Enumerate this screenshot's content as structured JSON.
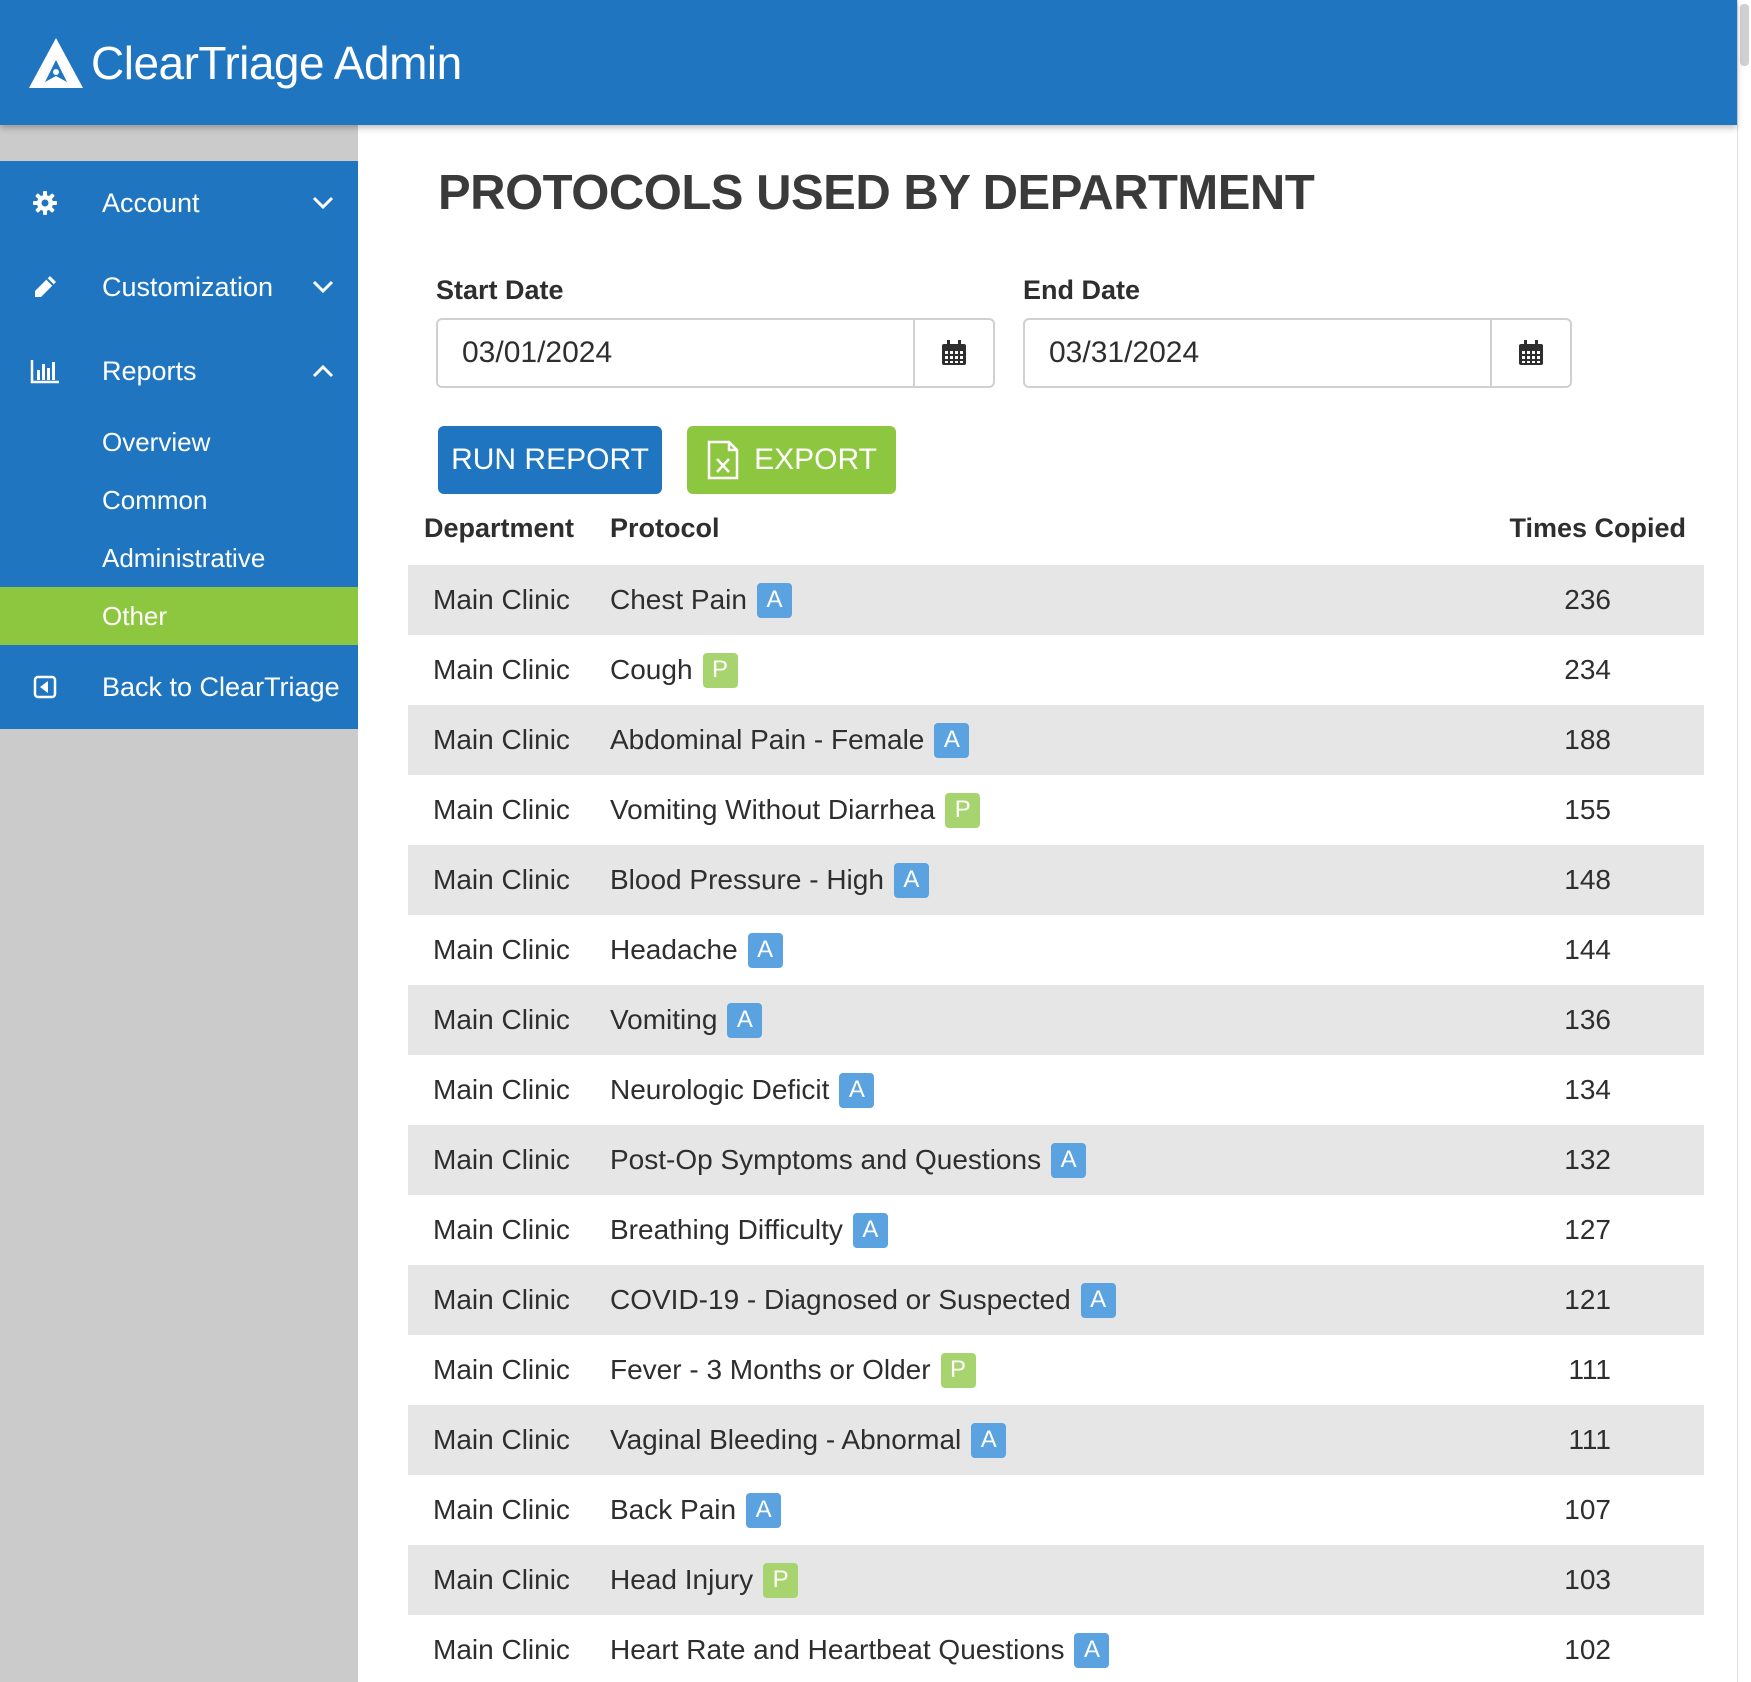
{
  "app": {
    "title": "ClearTriage Admin"
  },
  "colors": {
    "primary": "#1f75c0",
    "accent": "#8dc63f",
    "badge_a": "#5ba3e0",
    "badge_p": "#a8d46f"
  },
  "sidebar": {
    "items": [
      {
        "label": "Account",
        "icon": "gear-icon",
        "chevron": "down"
      },
      {
        "label": "Customization",
        "icon": "pencil-icon",
        "chevron": "down"
      },
      {
        "label": "Reports",
        "icon": "bar-chart-icon",
        "chevron": "up"
      }
    ],
    "sub_items": [
      {
        "label": "Overview",
        "active": false
      },
      {
        "label": "Common",
        "active": false
      },
      {
        "label": "Administrative",
        "active": false
      },
      {
        "label": "Other",
        "active": true
      }
    ],
    "back": {
      "label": "Back to ClearTriage",
      "icon": "back-arrow-icon"
    }
  },
  "main": {
    "title": "PROTOCOLS USED BY DEPARTMENT",
    "start_date": {
      "label": "Start Date",
      "value": "03/01/2024"
    },
    "end_date": {
      "label": "End Date",
      "value": "03/31/2024"
    },
    "run_report_label": "RUN REPORT",
    "export_label": "EXPORT",
    "table": {
      "headers": {
        "department": "Department",
        "protocol": "Protocol",
        "times_copied": "Times Copied"
      },
      "rows": [
        {
          "department": "Main Clinic",
          "protocol": "Chest Pain",
          "badge": "A",
          "count": "236"
        },
        {
          "department": "Main Clinic",
          "protocol": "Cough",
          "badge": "P",
          "count": "234"
        },
        {
          "department": "Main Clinic",
          "protocol": "Abdominal Pain - Female",
          "badge": "A",
          "count": "188"
        },
        {
          "department": "Main Clinic",
          "protocol": "Vomiting Without Diarrhea",
          "badge": "P",
          "count": "155"
        },
        {
          "department": "Main Clinic",
          "protocol": "Blood Pressure - High",
          "badge": "A",
          "count": "148"
        },
        {
          "department": "Main Clinic",
          "protocol": "Headache",
          "badge": "A",
          "count": "144"
        },
        {
          "department": "Main Clinic",
          "protocol": "Vomiting",
          "badge": "A",
          "count": "136"
        },
        {
          "department": "Main Clinic",
          "protocol": "Neurologic Deficit",
          "badge": "A",
          "count": "134"
        },
        {
          "department": "Main Clinic",
          "protocol": "Post-Op Symptoms and Questions",
          "badge": "A",
          "count": "132"
        },
        {
          "department": "Main Clinic",
          "protocol": "Breathing Difficulty",
          "badge": "A",
          "count": "127"
        },
        {
          "department": "Main Clinic",
          "protocol": "COVID-19 - Diagnosed or Suspected",
          "badge": "A",
          "count": "121"
        },
        {
          "department": "Main Clinic",
          "protocol": "Fever - 3 Months or Older",
          "badge": "P",
          "count": "111"
        },
        {
          "department": "Main Clinic",
          "protocol": "Vaginal Bleeding - Abnormal",
          "badge": "A",
          "count": "111"
        },
        {
          "department": "Main Clinic",
          "protocol": "Back Pain",
          "badge": "A",
          "count": "107"
        },
        {
          "department": "Main Clinic",
          "protocol": "Head Injury",
          "badge": "P",
          "count": "103"
        },
        {
          "department": "Main Clinic",
          "protocol": "Heart Rate and Heartbeat Questions",
          "badge": "A",
          "count": "102"
        }
      ]
    }
  }
}
